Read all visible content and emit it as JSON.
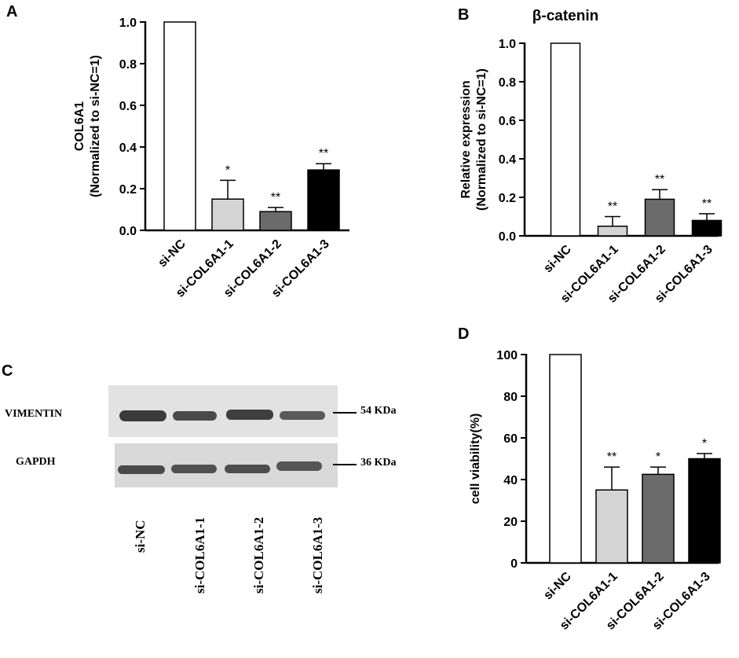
{
  "panels": {
    "A": "A",
    "B": "B",
    "C": "C",
    "D": "D"
  },
  "chart_data": [
    {
      "panel": "A",
      "type": "bar",
      "title": "",
      "ylabel_line1": "COL6A1",
      "ylabel_line2": "(Normalized to si-NC=1)",
      "categories": [
        "si-NC",
        "si-COL6A1-1",
        "si-COL6A1-2",
        "si-COL6A1-3"
      ],
      "values": [
        1.0,
        0.15,
        0.09,
        0.29
      ],
      "errors": [
        0,
        0.09,
        0.02,
        0.03
      ],
      "significance": [
        "",
        "*",
        "**",
        "**"
      ],
      "colors": [
        "#ffffff",
        "#d4d4d4",
        "#6b6b6b",
        "#000000"
      ],
      "ylim": [
        0,
        1.0
      ],
      "yticks": [
        "0.0",
        "0.2",
        "0.4",
        "0.6",
        "0.8",
        "1.0"
      ]
    },
    {
      "panel": "B",
      "type": "bar",
      "title": "β-catenin",
      "ylabel_line1": "Relative expression",
      "ylabel_line2": "(Normalized to si-NC=1)",
      "categories": [
        "si-NC",
        "si-COL6A1-1",
        "si-COL6A1-2",
        "si-COL6A1-3"
      ],
      "values": [
        1.0,
        0.05,
        0.19,
        0.08
      ],
      "errors": [
        0,
        0.05,
        0.05,
        0.035
      ],
      "significance": [
        "",
        "**",
        "**",
        "**"
      ],
      "colors": [
        "#ffffff",
        "#d4d4d4",
        "#6b6b6b",
        "#000000"
      ],
      "ylim": [
        0,
        1.0
      ],
      "yticks": [
        "0.0",
        "0.2",
        "0.4",
        "0.6",
        "0.8",
        "1.0"
      ]
    },
    {
      "panel": "D",
      "type": "bar",
      "title": "",
      "ylabel_line1": "cell viability(%)",
      "ylabel_line2": "",
      "categories": [
        "si-NC",
        "si-COL6A1-1",
        "si-COL6A1-2",
        "si-COL6A1-3"
      ],
      "values": [
        100,
        35,
        42.5,
        50
      ],
      "errors": [
        0,
        11,
        3.5,
        2.5
      ],
      "significance": [
        "",
        "**",
        "*",
        "*"
      ],
      "colors": [
        "#ffffff",
        "#d4d4d4",
        "#6b6b6b",
        "#000000"
      ],
      "ylim": [
        0,
        100
      ],
      "yticks": [
        "0",
        "20",
        "40",
        "60",
        "80",
        "100"
      ]
    }
  ],
  "blot": {
    "rows": [
      {
        "label": "VIMENTIN",
        "size": "54 KDa"
      },
      {
        "label": "GAPDH",
        "size": "36 KDa"
      }
    ],
    "lanes": [
      "si-NC",
      "si-COL6A1-1",
      "si-COL6A1-2",
      "si-COL6A1-3"
    ]
  }
}
